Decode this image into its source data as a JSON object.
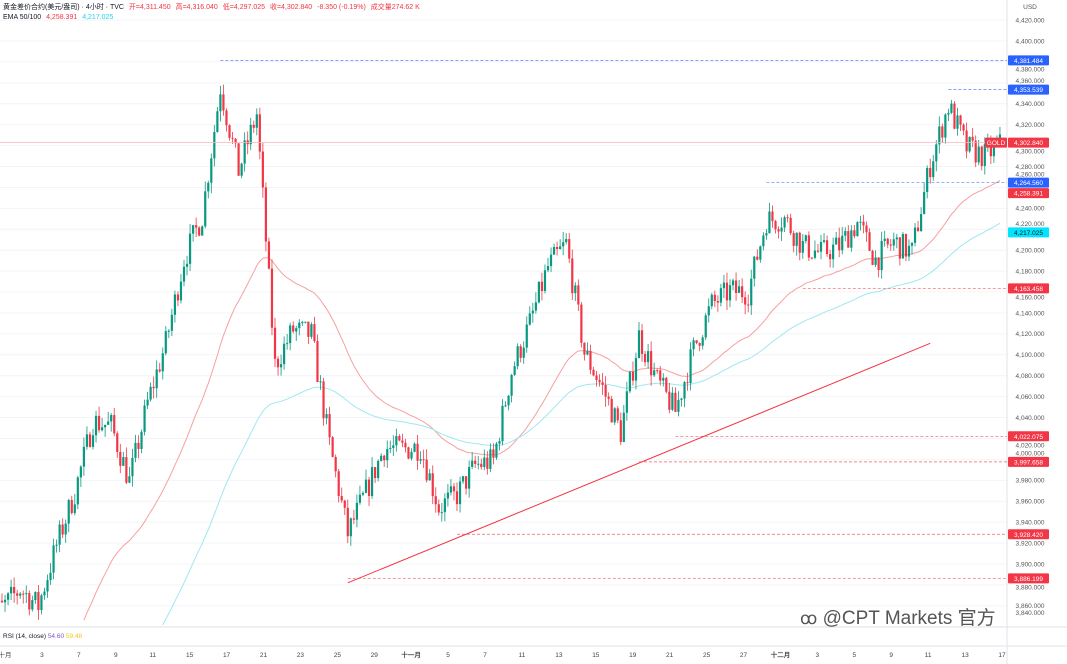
{
  "header": {
    "symbol": "黄金差价合约(美元/盎司) · 4小时 · TVC",
    "open": "开=4,311.450",
    "high": "高=4,316.040",
    "low": "低=4,297.025",
    "close": "收=4,302.840",
    "change": "-8.350 (-0.19%)",
    "volume": "成交量274.62 K",
    "ema_label": "EMA 50/100",
    "ema50": "4,258.391",
    "ema100": "4,217.025"
  },
  "rsi": {
    "label": "RSI (14, close)",
    "value1": "54.60",
    "value2": "59.48"
  },
  "watermark": "@CPT Markets 官方",
  "currency": "USD",
  "colors": {
    "up": "#089981",
    "down": "#f23645",
    "ema50": "#f7a0a0",
    "ema100": "#9ee8f0",
    "level_blue": "#2962ff",
    "level_red": "#f23645",
    "trendline": "#f23645"
  },
  "chart_data": {
    "type": "candlestick",
    "interval": "4h",
    "ylim": [
      3840,
      4430
    ],
    "y_ticks": [
      4420,
      4400,
      4380,
      4360,
      4340,
      4320,
      4300,
      4280,
      4260,
      4240,
      4220,
      4200,
      4180,
      4160,
      4140,
      4120,
      4100,
      4080,
      4060,
      4040,
      4020,
      4000,
      3980,
      3960,
      3940,
      3920,
      3900,
      3880,
      3860,
      3840
    ],
    "x_ticks": [
      "十月",
      "3",
      "7",
      "9",
      "11",
      "15",
      "17",
      "21",
      "23",
      "25",
      "29",
      "十一月",
      "5",
      "7",
      "11",
      "13",
      "15",
      "19",
      "21",
      "25",
      "27",
      "十二月",
      "3",
      "5",
      "9",
      "11",
      "13",
      "17"
    ],
    "daily_close_approx": {
      "dates": [
        "10-01",
        "10-02",
        "10-03",
        "10-06",
        "10-07",
        "10-08",
        "10-09",
        "10-10",
        "10-13",
        "10-14",
        "10-15",
        "10-16",
        "10-17",
        "10-20",
        "10-21",
        "10-22",
        "10-23",
        "10-24",
        "10-27",
        "10-28",
        "10-29",
        "10-30",
        "10-31",
        "11-03",
        "11-04",
        "11-05",
        "11-06",
        "11-07",
        "11-10",
        "11-11",
        "11-12",
        "11-13",
        "11-14",
        "11-17",
        "11-18",
        "11-19",
        "11-20",
        "11-21",
        "11-24",
        "11-25",
        "11-26",
        "11-27",
        "11-28",
        "12-01",
        "12-02",
        "12-03",
        "12-04",
        "12-05",
        "12-08",
        "12-09",
        "12-10",
        "12-11",
        "12-12",
        "12-15",
        "12-16",
        "12-17"
      ],
      "close": [
        3858,
        3876,
        3860,
        3918,
        3968,
        4036,
        4032,
        3979,
        4054,
        4111,
        4191,
        4233,
        4356,
        4276,
        4330,
        4090,
        4124,
        4119,
        4014,
        3929,
        3969,
        4011,
        4010,
        4012,
        3954,
        3966,
        3994,
        3999,
        4084,
        4130,
        4184,
        4206,
        4102,
        4068,
        4026,
        4118,
        4075,
        4046,
        4105,
        4148,
        4161,
        4160,
        4229,
        4230,
        4204,
        4197,
        4204,
        4226,
        4191,
        4208,
        4198,
        4282,
        4338,
        4298,
        4290,
        4302.84
      ]
    },
    "levels": [
      {
        "value": 4381.484,
        "label": "4,381.484",
        "color": "blue",
        "from": "10-17"
      },
      {
        "value": 4353.539,
        "label": "4,353.539",
        "color": "blue",
        "from": "12-12"
      },
      {
        "value": 4264.56,
        "label": "4,264.560",
        "color": "blue",
        "from": "11-28"
      },
      {
        "value": 4163.458,
        "label": "4,163.458",
        "color": "red",
        "from": "12-02"
      },
      {
        "value": 4022.075,
        "label": "4,022.075",
        "color": "red",
        "from": "11-21"
      },
      {
        "value": 3997.658,
        "label": "3,997.658",
        "color": "red",
        "from": "11-19"
      },
      {
        "value": 3928.42,
        "label": "3,928.420",
        "color": "red",
        "from": "11-05"
      },
      {
        "value": 3886.199,
        "label": "3,886.199",
        "color": "red",
        "from": "10-28"
      }
    ],
    "last_price": {
      "symbol": "GOLD",
      "value": 4302.84,
      "label": "4,302.840"
    },
    "ema_tags": [
      {
        "value": 4258.391,
        "label": "4,258.391",
        "color": "#f23645"
      },
      {
        "value": 4217.025,
        "label": "4,217.025",
        "color": "#00e5ff"
      }
    ],
    "trendline": {
      "start": {
        "date": "10-28",
        "value": 3882
      },
      "end": {
        "date": "12-11",
        "value": 4111
      }
    },
    "ema_periods": [
      50,
      100
    ]
  }
}
